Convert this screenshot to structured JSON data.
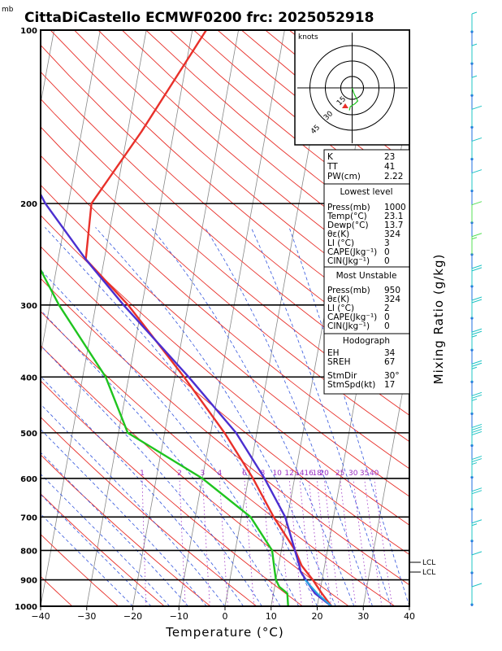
{
  "title": "CittaDiCastello ECMWF0200  frc: 2025052918",
  "unit_mb": "mb",
  "chart_data": {
    "type": "line",
    "subtype": "skew-T log-P diagram",
    "xlabel": "Temperature (°C)",
    "ylabel_right": "Mixing Ratio (g/kg)",
    "x_ticks": [
      -40,
      -30,
      -20,
      -10,
      0,
      10,
      20,
      30,
      40
    ],
    "p_ticks": [
      100,
      200,
      300,
      400,
      500,
      600,
      700,
      800,
      900,
      1000
    ],
    "xlim": [
      -40,
      40
    ],
    "plim": [
      1000,
      100
    ],
    "mixing_ratio_labels": [
      "1",
      "2",
      "3",
      "4",
      "6",
      "8",
      "10",
      "12",
      "14",
      "16",
      "18",
      "20",
      "25",
      "30",
      "35",
      "40"
    ],
    "series": [
      {
        "name": "",
        "color": "#e8302a",
        "points": [
          [
            1000,
            23.1
          ],
          [
            950,
            20.5
          ],
          [
            900,
            18
          ],
          [
            850,
            15
          ],
          [
            800,
            13
          ],
          [
            700,
            7
          ],
          [
            600,
            1
          ],
          [
            500,
            -7
          ],
          [
            400,
            -18
          ],
          [
            300,
            -33
          ],
          [
            250,
            -44
          ],
          [
            200,
            -45
          ],
          [
            150,
            -37
          ],
          [
            100,
            -27
          ]
        ]
      },
      {
        "name": "",
        "color": "#1fc41f",
        "points": [
          [
            1000,
            13.7
          ],
          [
            950,
            13
          ],
          [
            925,
            11
          ],
          [
            900,
            10
          ],
          [
            850,
            9
          ],
          [
            800,
            8
          ],
          [
            700,
            2
          ],
          [
            600,
            -10
          ],
          [
            500,
            -28
          ],
          [
            400,
            -35
          ],
          [
            300,
            -48
          ],
          [
            250,
            -55
          ],
          [
            200,
            -57
          ],
          [
            150,
            -61
          ],
          [
            100,
            -73
          ]
        ]
      },
      {
        "name": "",
        "color": "#4b2fd0",
        "points": [
          [
            1000,
            23.1
          ],
          [
            950,
            19
          ],
          [
            900,
            16.5
          ],
          [
            870,
            15
          ],
          [
            850,
            14.5
          ],
          [
            700,
            9.5
          ],
          [
            600,
            3.5
          ],
          [
            500,
            -4.5
          ],
          [
            400,
            -17
          ],
          [
            300,
            -34
          ],
          [
            250,
            -44
          ],
          [
            200,
            -55
          ],
          [
            150,
            -66
          ],
          [
            100,
            -80
          ]
        ]
      },
      {
        "name": "",
        "color": "#26a9e0",
        "points": [
          [
            1000,
            23.1
          ],
          [
            950,
            19.5
          ],
          [
            900,
            16.3
          ]
        ]
      }
    ],
    "lcl_labels": [
      "LCL",
      "LCL"
    ],
    "hodograph": {
      "unit": "knots",
      "rings": [
        "15",
        "30",
        "45"
      ],
      "trace": [
        [
          0,
          0
        ],
        [
          1,
          -3
        ],
        [
          2,
          -6
        ],
        [
          3,
          -8
        ],
        [
          5,
          -12
        ],
        [
          6,
          -14
        ],
        [
          3,
          -17
        ],
        [
          -2,
          -20
        ],
        [
          -3,
          -24
        ]
      ]
    },
    "wind_barb_speeds_kt": [
      5,
      5,
      5,
      10,
      10,
      10,
      10,
      15,
      20,
      20,
      25,
      25,
      25,
      40,
      25,
      20,
      15,
      10,
      10
    ]
  },
  "indices": {
    "rows": [
      {
        "label": "K",
        "value": "23"
      },
      {
        "label": "TT",
        "value": "41"
      },
      {
        "label": "PW(cm)",
        "value": "2.22"
      }
    ]
  },
  "lowest_level": {
    "header": "Lowest level",
    "rows": [
      {
        "label": "Press(mb)",
        "value": "1000"
      },
      {
        "label": "Temp(°C)",
        "value": "23.1"
      },
      {
        "label": "Dewp(°C)",
        "value": "13.7"
      },
      {
        "label": "θε(K)",
        "value": "324"
      },
      {
        "label": "LI (°C)",
        "value": "3"
      },
      {
        "label": "CAPE(Jkg⁻¹)",
        "value": "0"
      },
      {
        "label": "CIN(Jkg⁻¹)",
        "value": "0"
      }
    ]
  },
  "most_unstable": {
    "header": "Most Unstable",
    "rows": [
      {
        "label": "Press(mb)",
        "value": "950"
      },
      {
        "label": "θε(K)",
        "value": "324"
      },
      {
        "label": "LI (°C)",
        "value": "2"
      },
      {
        "label": "CAPE(Jkg⁻¹)",
        "value": "0"
      },
      {
        "label": "CIN(Jkg⁻¹)",
        "value": "0"
      }
    ]
  },
  "hodograph_box": {
    "header": "Hodograph",
    "rows": [
      {
        "label": "EH",
        "value": "34"
      },
      {
        "label": "SREH",
        "value": "67"
      },
      {
        "label": "StmDir",
        "value": "30°"
      },
      {
        "label": "StmSpd(kt)",
        "value": "17"
      }
    ]
  },
  "colors": {
    "isotherm": "#888888",
    "dry_adiabat": "#e8302a",
    "moist_adiabat": "#3355dd",
    "mixing_ratio": "#9b2fc4",
    "barb": "#1fc4c4",
    "barb_mid": "#55e055"
  }
}
